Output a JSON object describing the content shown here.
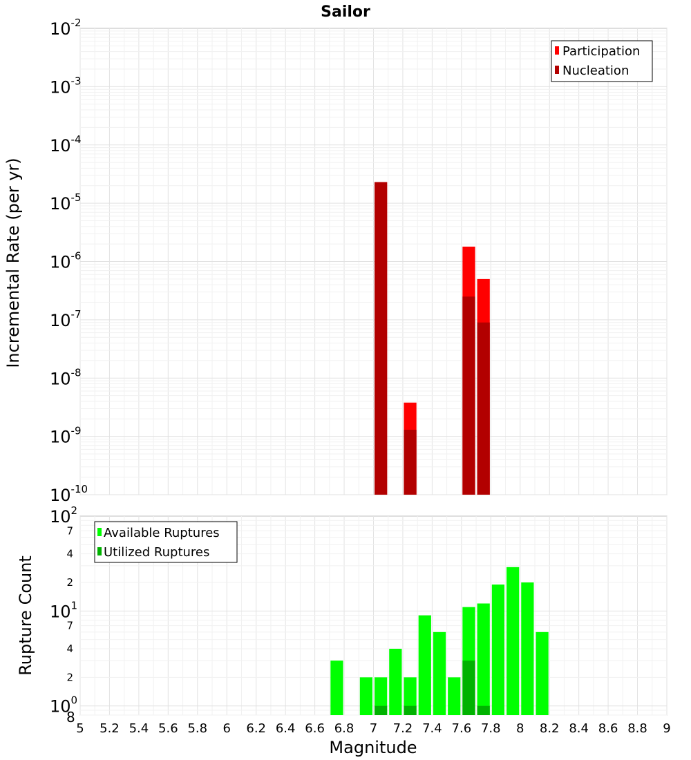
{
  "chart_data": [
    {
      "type": "bar",
      "title": "Sailor",
      "ylabel": "Incremental Rate (per yr)",
      "xlabel": "",
      "y_scale": "log",
      "ylim": [
        1e-10,
        0.01
      ],
      "xlim": [
        5,
        9
      ],
      "y_ticks": [
        {
          "base": "10",
          "exp": "-10"
        },
        {
          "base": "10",
          "exp": "-9"
        },
        {
          "base": "10",
          "exp": "-8"
        },
        {
          "base": "10",
          "exp": "-7"
        },
        {
          "base": "10",
          "exp": "-6"
        },
        {
          "base": "10",
          "exp": "-5"
        },
        {
          "base": "10",
          "exp": "-4"
        },
        {
          "base": "10",
          "exp": "-3"
        },
        {
          "base": "10",
          "exp": "-2"
        }
      ],
      "legend_position": "top-right",
      "series": [
        {
          "name": "Participation",
          "color": "#ff0000",
          "x": [
            7.05,
            7.25,
            7.65,
            7.75
          ],
          "values": [
            2.3e-05,
            3.8e-09,
            1.8e-06,
            5e-07
          ]
        },
        {
          "name": "Nucleation",
          "color": "#b20000",
          "x": [
            7.05,
            7.25,
            7.65,
            7.75
          ],
          "values": [
            2.3e-05,
            1.3e-09,
            2.5e-07,
            9e-08
          ]
        }
      ]
    },
    {
      "type": "bar",
      "title": "",
      "ylabel": "Rupture Count",
      "xlabel": "Magnitude",
      "y_scale": "log",
      "ylim": [
        0.8,
        100
      ],
      "xlim": [
        5,
        9
      ],
      "x_ticks": [
        "5",
        "5.2",
        "5.4",
        "5.6",
        "5.8",
        "6",
        "6.2",
        "6.4",
        "6.6",
        "6.8",
        "7",
        "7.2",
        "7.4",
        "7.6",
        "7.8",
        "8",
        "8.2",
        "8.4",
        "8.6",
        "8.8",
        "9"
      ],
      "y_major_ticks": [
        {
          "value": 1,
          "base": "10",
          "exp": "0"
        },
        {
          "value": 10,
          "base": "10",
          "exp": "1"
        },
        {
          "value": 100,
          "base": "10",
          "exp": "2"
        }
      ],
      "y_bottom_label": "8",
      "y_minor_ticks": [
        {
          "value": 2,
          "label": "2"
        },
        {
          "value": 4,
          "label": "4"
        },
        {
          "value": 7,
          "label": "7"
        },
        {
          "value": 20,
          "label": "2"
        },
        {
          "value": 40,
          "label": "4"
        },
        {
          "value": 70,
          "label": "7"
        }
      ],
      "legend_position": "top-left",
      "series": [
        {
          "name": "Available Ruptures",
          "color": "#00ff00",
          "x": [
            6.75,
            6.95,
            7.05,
            7.15,
            7.25,
            7.35,
            7.45,
            7.55,
            7.65,
            7.75,
            7.85,
            7.95,
            8.05,
            8.15
          ],
          "values": [
            3,
            2,
            2,
            4,
            2,
            9,
            6,
            2,
            11,
            12,
            19,
            29,
            20,
            6
          ]
        },
        {
          "name": "Utilized Ruptures",
          "color": "#00b200",
          "x": [
            7.05,
            7.25,
            7.65,
            7.75
          ],
          "values": [
            1,
            1,
            3,
            1
          ]
        }
      ]
    }
  ]
}
